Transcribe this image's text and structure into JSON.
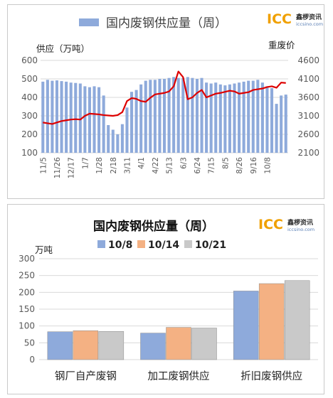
{
  "colors": {
    "bar_blue": "#8eaadb",
    "line_red": "#dd0000",
    "grid": "#d9d9d9",
    "series_1": "#8eaadb",
    "series_2": "#f4b183",
    "series_3": "#c9c9c9"
  },
  "logo": {
    "mark": "ICC",
    "name": "鑫椤资讯",
    "url": "iccsino.com"
  },
  "chart_data": [
    {
      "type": "bar",
      "title": "国内废钢供应量（周）",
      "ylabel": "供应（万吨）",
      "y2label": "重废价",
      "ylim": [
        100,
        600
      ],
      "y2lim": [
        2100,
        4600
      ],
      "yticks": [
        "100",
        "200",
        "300",
        "400",
        "500",
        "600"
      ],
      "y2ticks": [
        "2100",
        "2600",
        "3100",
        "3600",
        "4100",
        "4600"
      ],
      "legend": [
        "国内废钢供应量（周）"
      ],
      "x_tick_labels": [
        "11/5",
        "11/26",
        "12/17",
        "1/7",
        "1/28",
        "2/18",
        "3/11",
        "4/1",
        "4/22",
        "5/13",
        "6/3",
        "6/24",
        "7/15",
        "8/5",
        "8/26",
        "9/16",
        "10/8"
      ],
      "series": [
        {
          "kind": "bar",
          "values": [
            485,
            495,
            490,
            492,
            488,
            485,
            480,
            478,
            475,
            460,
            455,
            460,
            455,
            410,
            250,
            225,
            200,
            255,
            345,
            430,
            440,
            470,
            490,
            495,
            495,
            500,
            500,
            505,
            510,
            505,
            505,
            510,
            505,
            500,
            505,
            480,
            475,
            480,
            470,
            465,
            470,
            475,
            480,
            485,
            490,
            490,
            495,
            480,
            460,
            450,
            365,
            410,
            415
          ]
        },
        {
          "kind": "line",
          "axis": "y2",
          "values": [
            2920,
            2900,
            2880,
            2920,
            2960,
            2980,
            3000,
            3010,
            3000,
            3100,
            3160,
            3150,
            3140,
            3120,
            3110,
            3100,
            3120,
            3200,
            3500,
            3580,
            3560,
            3500,
            3480,
            3590,
            3680,
            3700,
            3720,
            3760,
            3900,
            4300,
            4150,
            3550,
            3600,
            3720,
            3800,
            3600,
            3650,
            3700,
            3720,
            3750,
            3780,
            3760,
            3700,
            3720,
            3740,
            3800,
            3820,
            3840,
            3880,
            3900,
            3860,
            4000,
            3990
          ]
        }
      ]
    },
    {
      "type": "bar",
      "title": "国内废钢供应量（周）",
      "ylabel": "万吨",
      "ylim": [
        0,
        300
      ],
      "yticks": [
        "0",
        "50",
        "100",
        "150",
        "200",
        "250",
        "300"
      ],
      "categories": [
        "钢厂自产废钢",
        "加工废钢供应",
        "折旧废钢供应"
      ],
      "series": [
        {
          "name": "10/8",
          "values": [
            83,
            79,
            204
          ]
        },
        {
          "name": "10/14",
          "values": [
            86,
            96,
            226
          ]
        },
        {
          "name": "10/21",
          "values": [
            84,
            94,
            235
          ]
        }
      ]
    }
  ]
}
